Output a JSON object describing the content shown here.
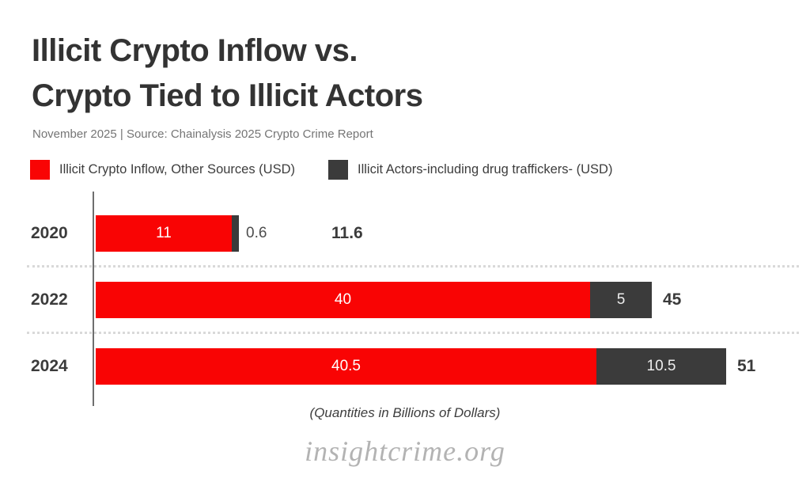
{
  "header": {
    "title": "Illicit Crypto Inflow vs.\nCrypto Tied to Illicit Actors",
    "subtitle": "November 2025 | Source: Chainalysis 2025 Crypto Crime Report"
  },
  "legend": [
    {
      "label": "Illicit Crypto Inflow, Other Sources (USD)",
      "color": "#f90404"
    },
    {
      "label": "Illicit Actors-including drug traffickers- (USD)",
      "color": "#3b3b3b"
    }
  ],
  "chart_data": {
    "type": "bar",
    "orientation": "horizontal",
    "stacked": true,
    "categories": [
      "2020",
      "2022",
      "2024"
    ],
    "series": [
      {
        "name": "Illicit Crypto Inflow, Other Sources (USD)",
        "color": "#f90404",
        "values": [
          11,
          40,
          40.5
        ],
        "labels": [
          "11",
          "40",
          "40.5"
        ]
      },
      {
        "name": "Illicit Actors-including drug traffickers- (USD)",
        "color": "#3b3b3b",
        "values": [
          0.6,
          5,
          10.5
        ],
        "labels": [
          "0.6",
          "5",
          "10.5"
        ]
      }
    ],
    "totals": [
      "11.6",
      "45",
      "51"
    ],
    "xlim": [
      0,
      52.5
    ],
    "grid": "dotted-row-separators",
    "legend_position": "top",
    "caption": "(Quantities in Billions of Dollars)"
  },
  "footer": {
    "watermark": "insightcrime.org"
  },
  "colors": {
    "bar_red": "#f90404",
    "bar_dark": "#3b3b3b",
    "title_text": "#333333",
    "subtitle_text": "#757575",
    "axis_line": "#6e6e6e",
    "separator": "#d9d9d9",
    "watermark_text": "#b3b3b3"
  }
}
